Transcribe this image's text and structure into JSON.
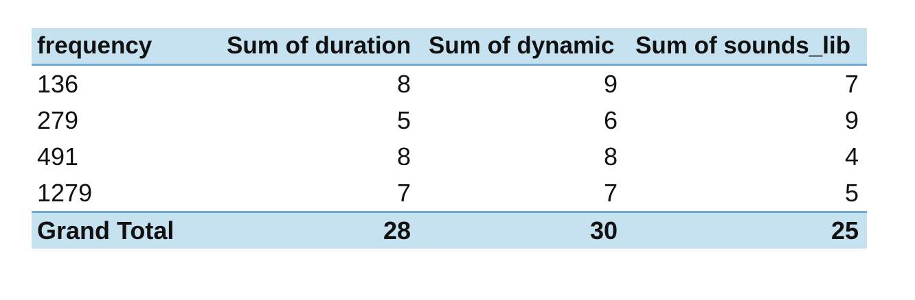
{
  "pivot_table": {
    "headers": [
      "frequency",
      "Sum of duration",
      "Sum of dynamic",
      "Sum of sounds_lib"
    ],
    "rows": [
      [
        "136",
        "8",
        "9",
        "7"
      ],
      [
        "279",
        "5",
        "6",
        "9"
      ],
      [
        "491",
        "8",
        "8",
        "4"
      ],
      [
        "1279",
        "7",
        "7",
        "5"
      ]
    ],
    "total": [
      "Grand Total",
      "28",
      "30",
      "25"
    ],
    "header_fill": "#c6e2f0",
    "border_color": "#6fa8d0"
  }
}
